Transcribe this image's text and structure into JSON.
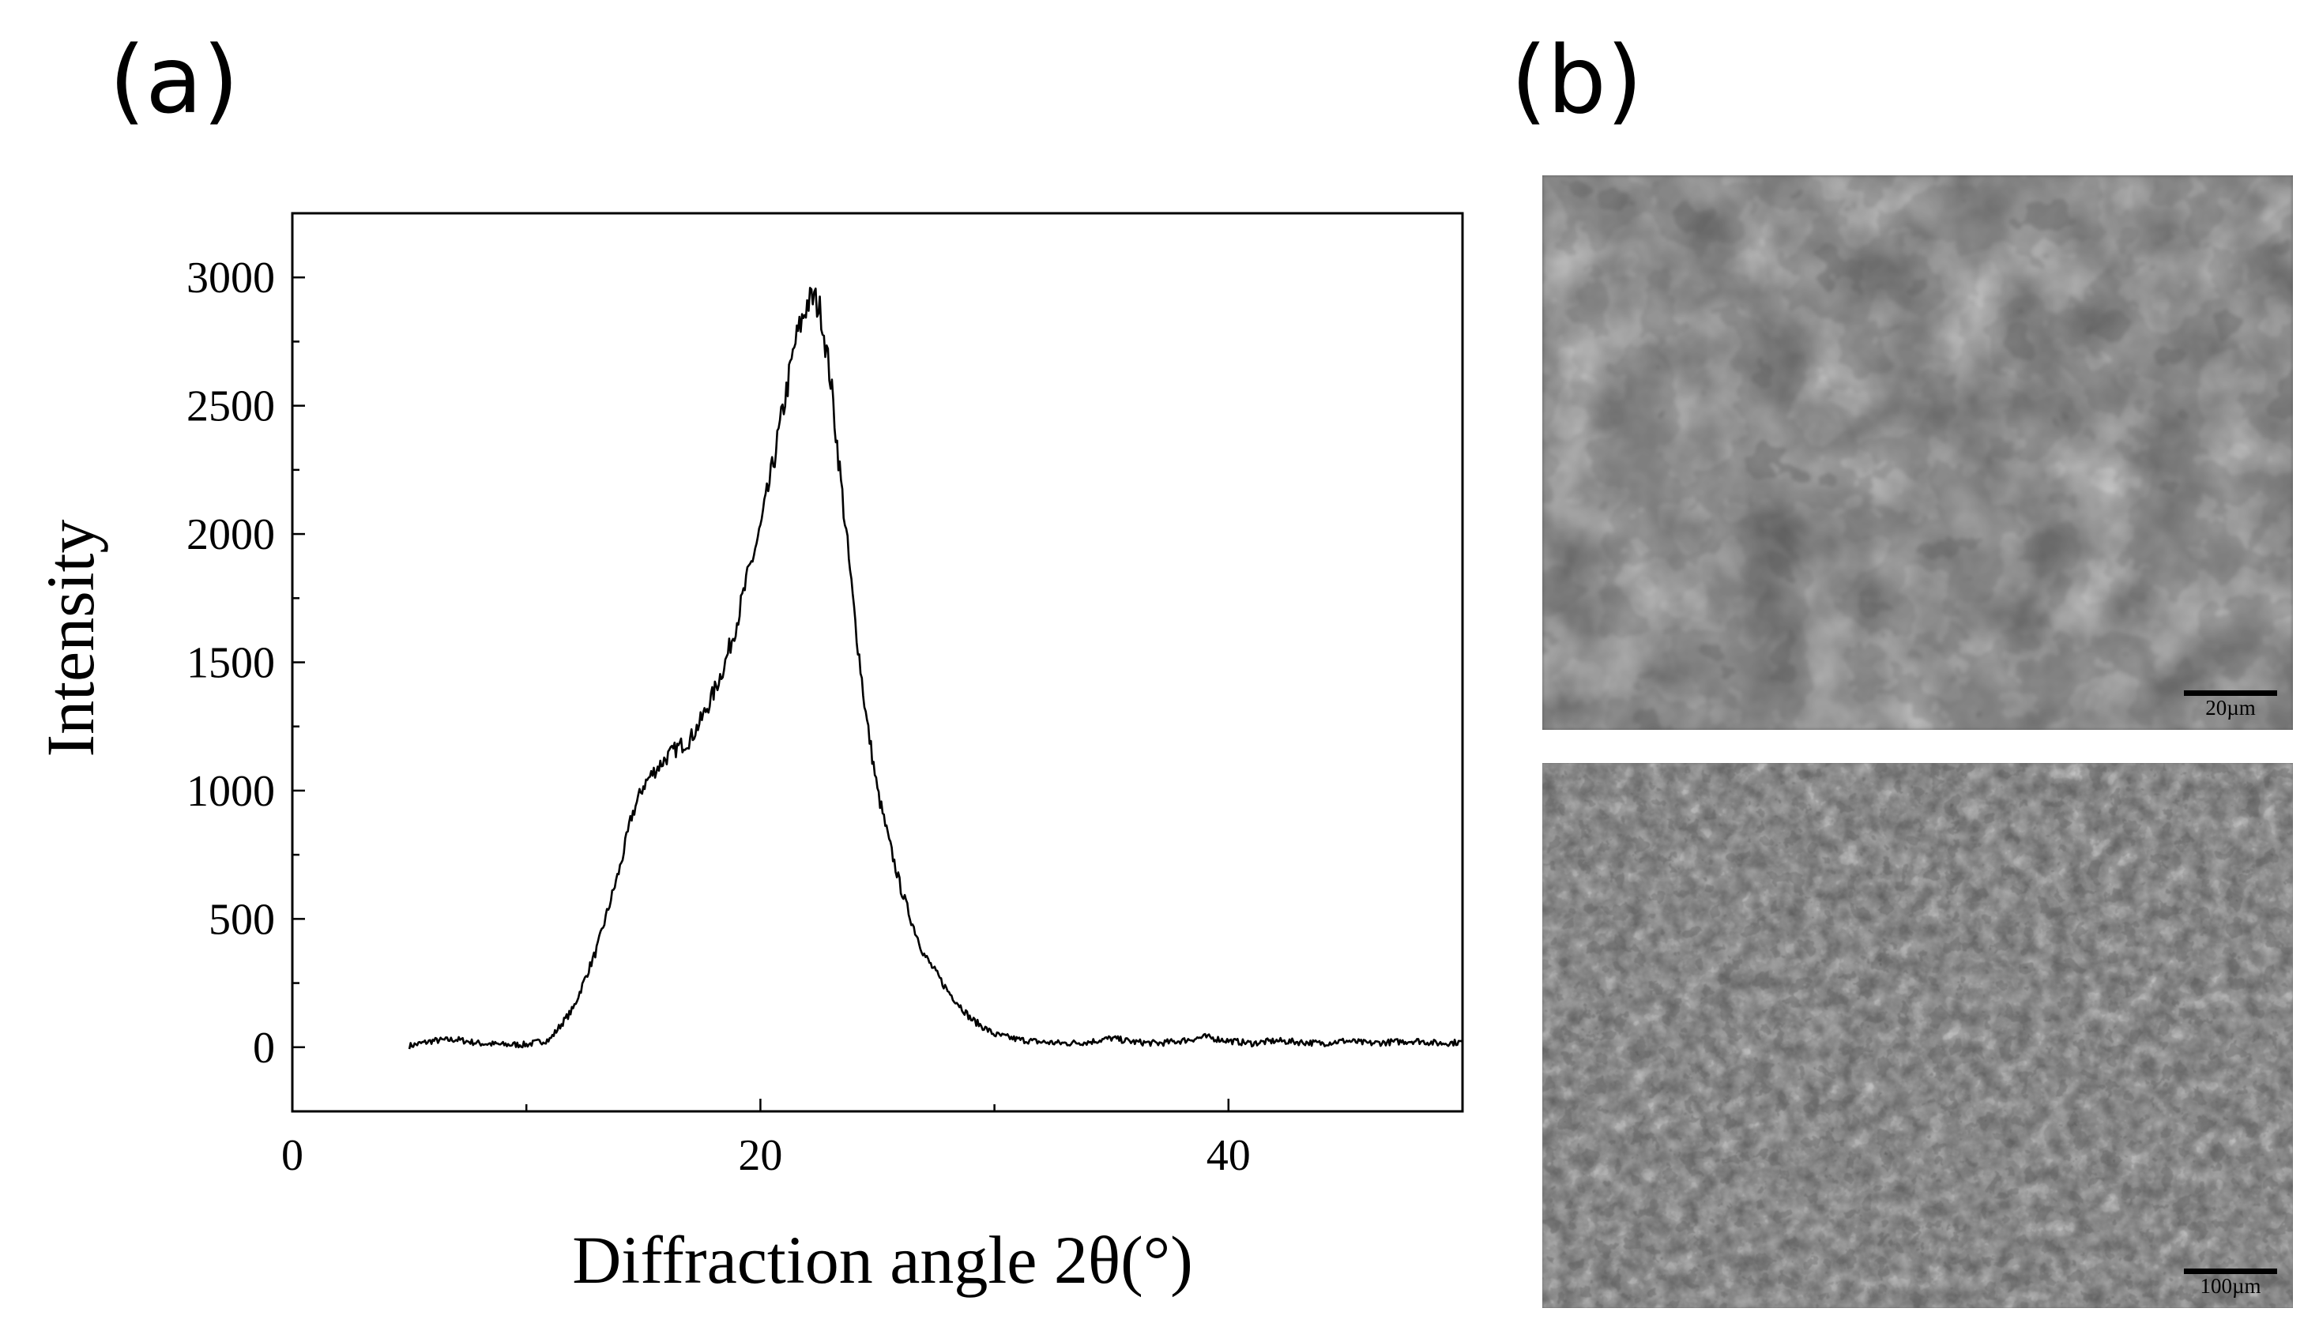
{
  "panels": {
    "a": "(a)",
    "b": "(b)"
  },
  "chart_data": {
    "type": "line",
    "title": "",
    "xlabel": "Diffraction angle 2θ(°)",
    "ylabel": "Intensity",
    "xlim": [
      0,
      50
    ],
    "ylim": [
      -250,
      3250
    ],
    "xticks": [
      0,
      20,
      40
    ],
    "yticks": [
      0,
      500,
      1000,
      1500,
      2000,
      2500,
      3000
    ],
    "grid": false,
    "legend": "none",
    "line_color": "#000000",
    "series": [
      {
        "x": [
          5,
          6,
          7,
          8,
          9,
          10,
          11,
          12,
          13,
          14,
          14.5,
          15,
          15.5,
          16,
          16.5,
          17,
          17.5,
          18,
          18.5,
          19,
          19.5,
          20,
          20.5,
          21,
          21.5,
          22,
          22.3,
          22.6,
          23,
          23.5,
          24,
          24.5,
          25,
          25.5,
          26,
          26.5,
          27,
          28,
          29,
          30,
          31,
          32,
          33,
          34,
          35,
          36,
          37,
          38,
          39,
          40,
          41,
          42,
          43,
          44,
          45,
          46,
          47,
          48,
          49,
          50
        ],
        "y": [
          5,
          25,
          30,
          15,
          10,
          10,
          30,
          150,
          380,
          700,
          900,
          1020,
          1080,
          1130,
          1170,
          1200,
          1280,
          1380,
          1500,
          1660,
          1850,
          2020,
          2250,
          2500,
          2750,
          2900,
          2920,
          2860,
          2600,
          2150,
          1700,
          1300,
          1000,
          800,
          620,
          480,
          360,
          220,
          110,
          50,
          30,
          20,
          15,
          20,
          35,
          20,
          15,
          25,
          40,
          25,
          15,
          25,
          20,
          15,
          25,
          15,
          20,
          25,
          15,
          20
        ]
      }
    ]
  },
  "sem_images": {
    "top": {
      "scale_label": "20µm"
    },
    "bottom": {
      "scale_label": "100µm"
    }
  }
}
